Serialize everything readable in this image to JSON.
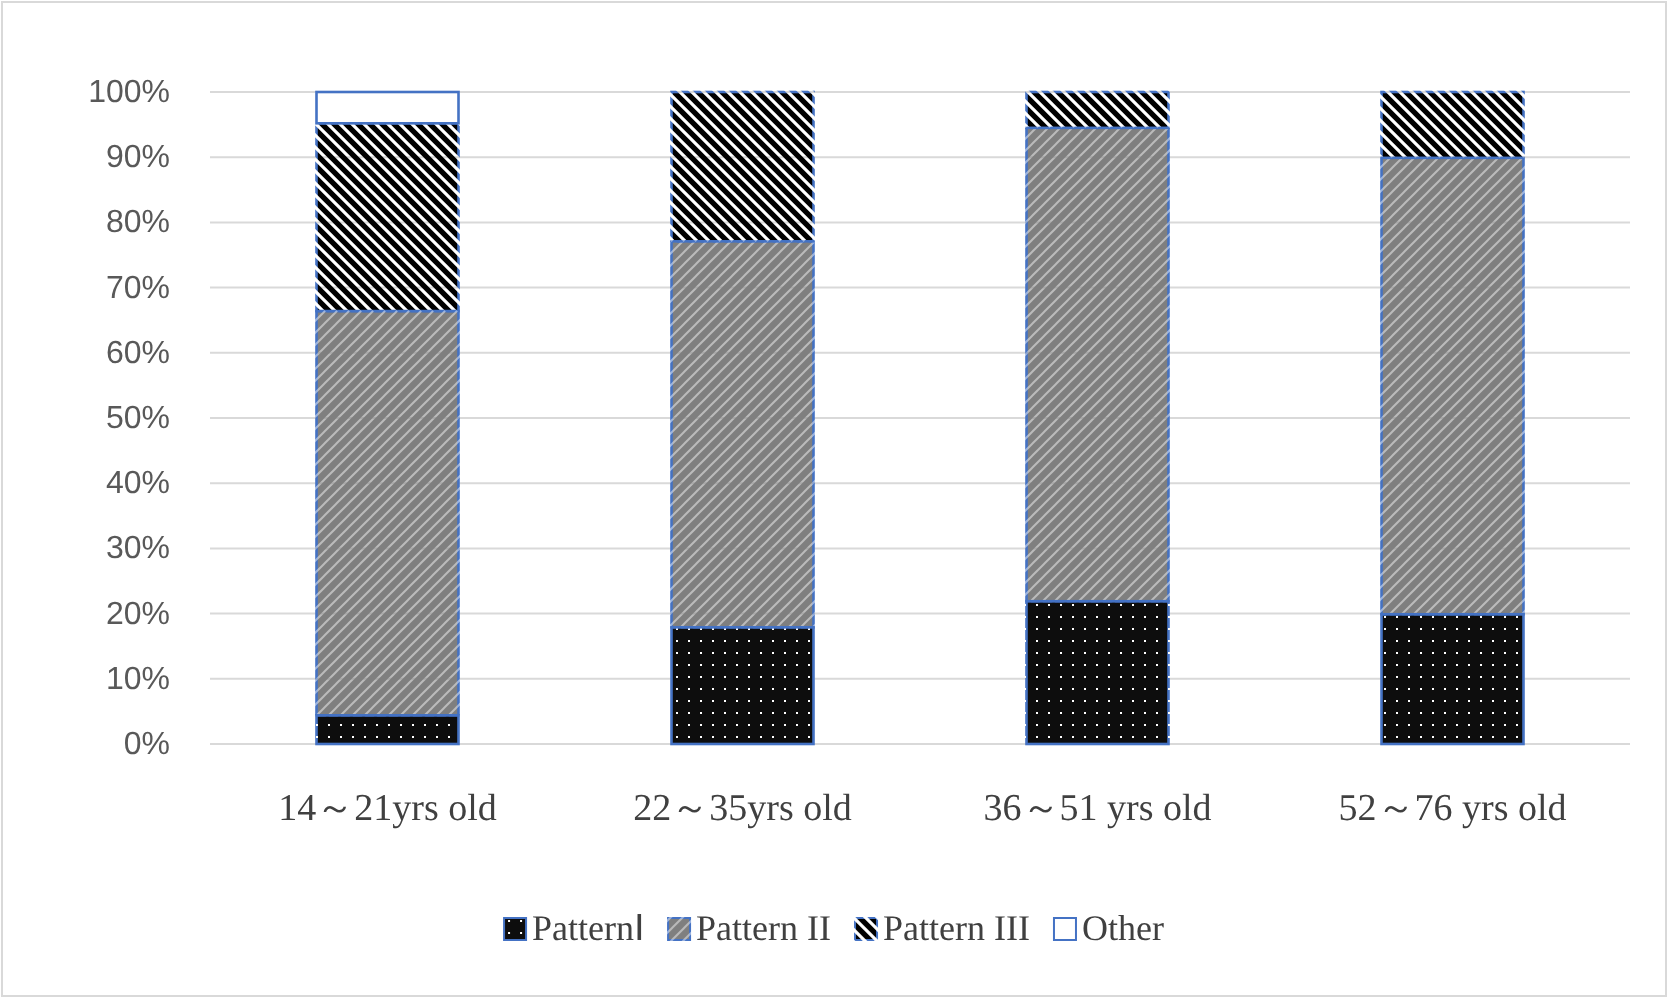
{
  "chart_data": {
    "type": "bar",
    "stacked": true,
    "categories": [
      "14～21yrs old",
      "22～35yrs old",
      "36～51 yrs old",
      "52～76 yrs old"
    ],
    "series": [
      {
        "name": "PatternⅠ",
        "color": "#0d0d0d",
        "values": [
          4.4,
          17.9,
          21.9,
          19.9
        ]
      },
      {
        "name": "Pattern II",
        "color": "#7f7f7f",
        "values": [
          62.0,
          59.2,
          72.6,
          70.0
        ]
      },
      {
        "name": "Pattern III",
        "color": "#000000",
        "values": [
          28.8,
          22.9,
          5.5,
          10.1
        ]
      },
      {
        "name": "Other",
        "color": "#ffffff",
        "values": [
          4.8,
          0,
          0,
          0
        ]
      }
    ],
    "ylim": [
      0,
      100
    ],
    "yticks": [
      {
        "value": 0,
        "label": "0%"
      },
      {
        "value": 10,
        "label": "10%"
      },
      {
        "value": 20,
        "label": "20%"
      },
      {
        "value": 30,
        "label": "30%"
      },
      {
        "value": 40,
        "label": "40%"
      },
      {
        "value": 50,
        "label": "50%"
      },
      {
        "value": 60,
        "label": "60%"
      },
      {
        "value": 70,
        "label": "70%"
      },
      {
        "value": 80,
        "label": "80%"
      },
      {
        "value": 90,
        "label": "90%"
      },
      {
        "value": 100,
        "label": "100%"
      }
    ],
    "grid": "y",
    "legend": "bottom"
  }
}
